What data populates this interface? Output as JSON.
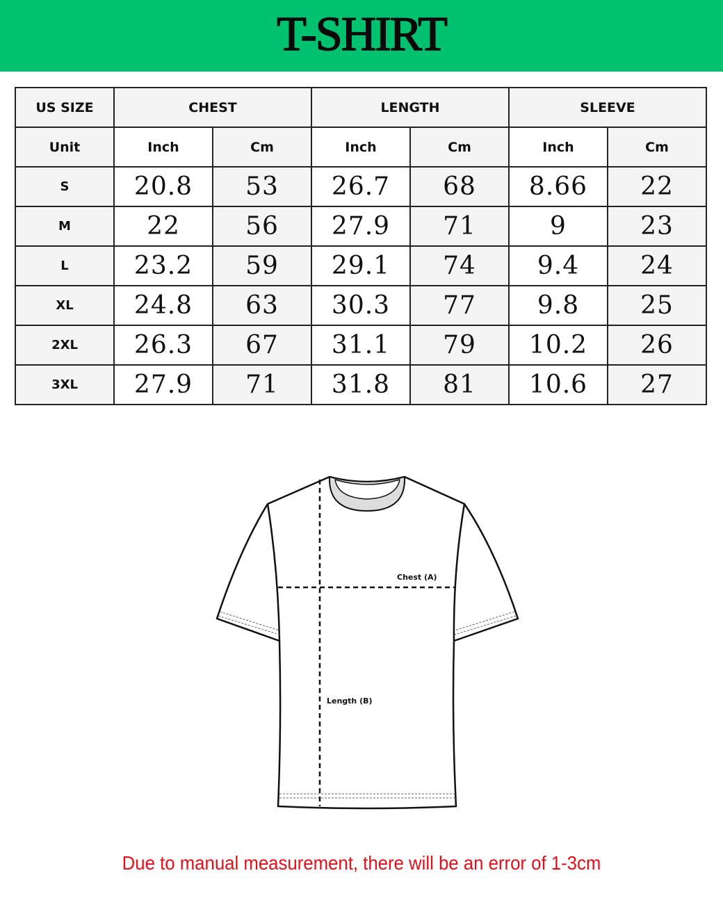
{
  "title": "T-SHIRT",
  "table": {
    "header": [
      "US SIZE",
      "CHEST",
      "LENGTH",
      "SLEEVE"
    ],
    "unit_row": [
      "Unit",
      "Inch",
      "Cm",
      "Inch",
      "Cm",
      "Inch",
      "Cm"
    ],
    "rows": [
      [
        "S",
        "20.8",
        "53",
        "26.7",
        "68",
        "8.66",
        "22"
      ],
      [
        "M",
        "22",
        "56",
        "27.9",
        "71",
        "9",
        "23"
      ],
      [
        "L",
        "23.2",
        "59",
        "29.1",
        "74",
        "9.4",
        "24"
      ],
      [
        "XL",
        "24.8",
        "63",
        "30.3",
        "77",
        "9.8",
        "25"
      ],
      [
        "2XL",
        "26.3",
        "67",
        "31.1",
        "79",
        "10.2",
        "26"
      ],
      [
        "3XL",
        "27.9",
        "71",
        "31.8",
        "81",
        "10.6",
        "27"
      ]
    ]
  },
  "diagram": {
    "chest_label": "Chest (A)",
    "length_label": "Length (B)"
  },
  "note": "Due to manual measurement, there will be an error of 1-3cm",
  "colors": {
    "banner": "#00c170",
    "note": "#e3101a"
  }
}
